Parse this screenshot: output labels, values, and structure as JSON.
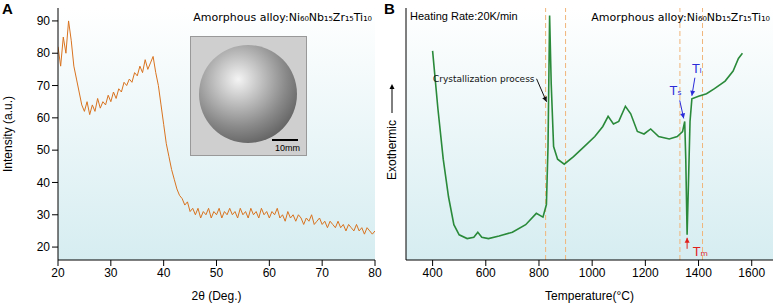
{
  "chart_data": [
    {
      "type": "line",
      "panel_label": "A",
      "title": "Amorphous alloy:Ni₆₀Nb₁₅Zr₁₅Ti₁₀",
      "inset_label": "10mm",
      "x_label": "2θ (Deg.)",
      "y_label": "Intensity (a.u.)",
      "color": "#d9731f",
      "xlim": [
        20,
        80
      ],
      "xticks": [
        20,
        30,
        40,
        50,
        60,
        70,
        80
      ],
      "ylim": [
        16,
        94
      ],
      "yticks": [
        20,
        30,
        40,
        50,
        60,
        70,
        80,
        90
      ],
      "grid": false,
      "x": [
        20,
        20.5,
        21,
        21.5,
        22,
        22.5,
        23,
        23.5,
        24,
        24.5,
        25,
        25.5,
        26,
        26.5,
        27,
        27.5,
        28,
        28.5,
        29,
        29.5,
        30,
        30.5,
        31,
        31.5,
        32,
        32.5,
        33,
        33.5,
        34,
        34.5,
        35,
        35.5,
        36,
        36.5,
        37,
        37.5,
        38,
        38.5,
        39,
        39.5,
        40,
        40.5,
        41,
        41.5,
        42,
        42.5,
        43,
        43.5,
        44,
        44.5,
        45,
        45.5,
        46,
        46.5,
        47,
        47.5,
        48,
        48.5,
        49,
        49.5,
        50,
        50.5,
        51,
        51.5,
        52,
        52.5,
        53,
        53.5,
        54,
        54.5,
        55,
        55.5,
        56,
        56.5,
        57,
        57.5,
        58,
        58.5,
        59,
        59.5,
        60,
        60.5,
        61,
        61.5,
        62,
        62.5,
        63,
        63.5,
        64,
        64.5,
        65,
        65.5,
        66,
        66.5,
        67,
        67.5,
        68,
        68.5,
        69,
        69.5,
        70,
        70.5,
        71,
        71.5,
        72,
        72.5,
        73,
        73.5,
        74,
        74.5,
        75,
        75.5,
        76,
        76.5,
        77,
        77.5,
        78,
        78.5,
        79,
        79.5,
        80
      ],
      "values": [
        82,
        76,
        85,
        80,
        90,
        84,
        76,
        72,
        68,
        64,
        62,
        65,
        61,
        64,
        62,
        66,
        63,
        65,
        64,
        67,
        65,
        68,
        66,
        69,
        68,
        71,
        70,
        72,
        71,
        74,
        73,
        76,
        74,
        78,
        75,
        77,
        79,
        74,
        70,
        64,
        58,
        52,
        48,
        44,
        41,
        38,
        36,
        35,
        33,
        34,
        31,
        32,
        30,
        32,
        29,
        31,
        30,
        32,
        29,
        31,
        30,
        32,
        29,
        31,
        30,
        32,
        30,
        31,
        29,
        32,
        30,
        31,
        29,
        32,
        30,
        31,
        29,
        32,
        30,
        31,
        29,
        31,
        30,
        32,
        29,
        30,
        28,
        31,
        29,
        30,
        28,
        30,
        29,
        27,
        29,
        28,
        30,
        27,
        28,
        29,
        27,
        28,
        26,
        28,
        27,
        26,
        28,
        26,
        27,
        25,
        27,
        26,
        25,
        27,
        25,
        26,
        24,
        26,
        25,
        24,
        25
      ]
    },
    {
      "type": "line",
      "panel_label": "B",
      "title": "Amorphous alloy:Ni₆₀Nb₁₅Zr₁₅Ti₁₀",
      "subtitle": "Heating Rate:20K/min",
      "x_label": "Temperature(°C)",
      "y_label": "Exothermic",
      "color": "#2a8a3a",
      "xlim": [
        300,
        1680
      ],
      "xticks": [
        400,
        600,
        800,
        1000,
        1200,
        1400,
        1600
      ],
      "ylim": [
        0,
        100
      ],
      "tick_labels": "x",
      "grid": false,
      "reference_lines": [
        825,
        900,
        1330,
        1415
      ],
      "annotations": [
        {
          "text": "Crystallization process",
          "x": 836,
          "y": 62,
          "color": "#111111"
        },
        {
          "text": "Tₛ",
          "x": 1348,
          "y": 55,
          "color": "#2b2bd9"
        },
        {
          "text": "Tₗ",
          "x": 1375,
          "y": 64,
          "color": "#2b2bd9"
        },
        {
          "text": "Tₘ",
          "x": 1357,
          "y": 10,
          "color": "#e0201b"
        }
      ],
      "x": [
        400,
        420,
        440,
        460,
        480,
        500,
        530,
        555,
        570,
        585,
        610,
        650,
        700,
        750,
        790,
        815,
        828,
        834,
        840,
        846,
        855,
        870,
        895,
        930,
        970,
        1010,
        1040,
        1060,
        1080,
        1100,
        1125,
        1145,
        1170,
        1195,
        1220,
        1250,
        1290,
        1320,
        1340,
        1348,
        1352,
        1357,
        1362,
        1368,
        1375,
        1400,
        1430,
        1460,
        1500,
        1530,
        1550,
        1565
      ],
      "values": [
        83,
        60,
        40,
        25,
        14,
        10,
        8.5,
        9,
        11,
        9,
        8.5,
        9.5,
        11,
        14,
        18.5,
        17,
        22,
        45,
        97,
        70,
        45,
        40,
        38,
        41,
        45,
        49,
        53,
        57,
        54,
        55,
        61,
        58,
        51,
        50,
        52,
        49,
        48,
        49,
        51,
        55,
        40,
        10,
        30,
        55,
        64,
        65,
        66,
        68,
        71,
        75,
        80,
        82
      ]
    }
  ]
}
